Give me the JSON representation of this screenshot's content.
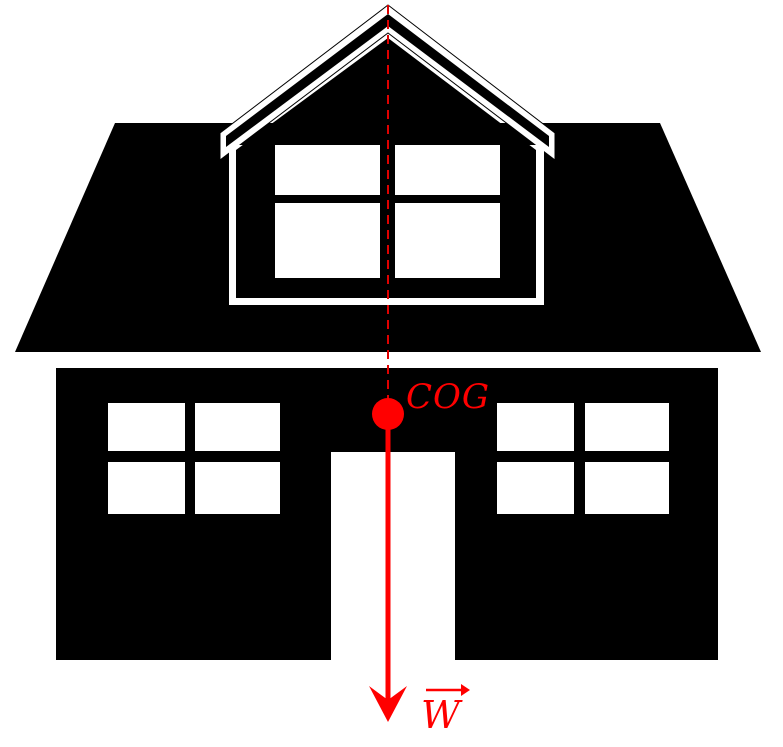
{
  "labels": {
    "center_of_gravity": "COG",
    "weight": "W"
  },
  "colors": {
    "house": "#000000",
    "windows": "#ffffff",
    "force": "#ff0000"
  }
}
